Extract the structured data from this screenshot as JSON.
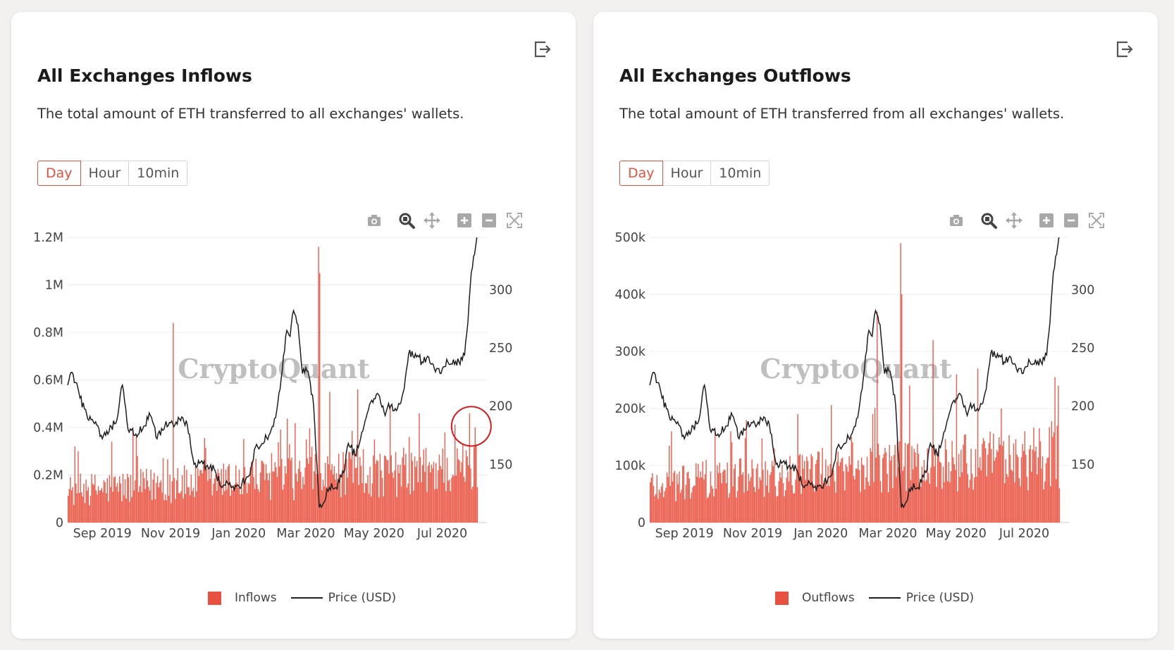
{
  "colors": {
    "bar": "#e8513f",
    "price_line": "#1e1e1e",
    "tab_active": "#e0533f",
    "annotation": "#d81b1b"
  },
  "modebar_icons": [
    "camera-icon",
    "zoom-icon",
    "pan-icon",
    "zoom-in-icon",
    "zoom-out-icon",
    "autoscale-icon"
  ],
  "tabs": [
    "Day",
    "Hour",
    "10min"
  ],
  "cards": [
    {
      "title": "All Exchanges Inflows",
      "description": "The total amount of ETH transferred to all exchanges' wallets.",
      "active_tab": "Day",
      "watermark": "CryptoQuant",
      "legend": {
        "bars": "Inflows",
        "line": "Price (USD)"
      }
    },
    {
      "title": "All Exchanges Outflows",
      "description": "The total amount of ETH transferred from all exchanges' wallets.",
      "active_tab": "Day",
      "watermark": "CryptoQuant",
      "legend": {
        "bars": "Outflows",
        "line": "Price (USD)"
      }
    }
  ],
  "chart_data": [
    {
      "type": "bar",
      "x_range": [
        "2019-08-01",
        "2020-08-10"
      ],
      "x_ticks": [
        "Sep 2019",
        "Nov 2019",
        "Jan 2020",
        "Mar 2020",
        "May 2020",
        "Jul 2020"
      ],
      "y_left": {
        "ticks": [
          "0",
          "0.2M",
          "0.4M",
          "0.6M",
          "0.8M",
          "1M",
          "1.2M"
        ],
        "ylim": [
          0,
          1200000
        ]
      },
      "y_right": {
        "ticks": [
          "150",
          "200",
          "250",
          "300"
        ],
        "ylim": [
          100,
          345
        ]
      },
      "grid": true,
      "legend_position": "bottom",
      "series": [
        {
          "name": "Inflows",
          "type": "bar",
          "baseline": 150000,
          "spikes": [
            [
              "2019-08-10",
              300000
            ],
            [
              "2019-09-09",
              340000
            ],
            [
              "2019-09-28",
              400000
            ],
            [
              "2019-10-20",
              195000
            ],
            [
              "2019-11-03",
              840000
            ],
            [
              "2019-11-25",
              230000
            ],
            [
              "2020-01-20",
              210000
            ],
            [
              "2020-02-15",
              330000
            ],
            [
              "2020-03-12",
              1160000
            ],
            [
              "2020-03-13",
              1050000
            ],
            [
              "2020-03-22",
              550000
            ],
            [
              "2020-04-16",
              560000
            ],
            [
              "2020-05-01",
              350000
            ],
            [
              "2020-06-01",
              360000
            ],
            [
              "2020-07-03",
              380000
            ],
            [
              "2020-07-25",
              460000
            ],
            [
              "2020-07-30",
              400000
            ]
          ]
        },
        {
          "name": "Price (USD)",
          "type": "line",
          "axis": "right",
          "points": [
            [
              "2019-08-01",
              218
            ],
            [
              "2019-08-05",
              229
            ],
            [
              "2019-08-12",
              207
            ],
            [
              "2019-08-18",
              193
            ],
            [
              "2019-08-25",
              185
            ],
            [
              "2019-09-01",
              172
            ],
            [
              "2019-09-07",
              178
            ],
            [
              "2019-09-14",
              188
            ],
            [
              "2019-09-19",
              218
            ],
            [
              "2019-09-24",
              180
            ],
            [
              "2019-10-01",
              176
            ],
            [
              "2019-10-07",
              180
            ],
            [
              "2019-10-14",
              192
            ],
            [
              "2019-10-20",
              172
            ],
            [
              "2019-10-27",
              183
            ],
            [
              "2019-11-03",
              185
            ],
            [
              "2019-11-09",
              189
            ],
            [
              "2019-11-16",
              184
            ],
            [
              "2019-11-22",
              150
            ],
            [
              "2019-11-28",
              152
            ],
            [
              "2019-12-03",
              148
            ],
            [
              "2019-12-10",
              146
            ],
            [
              "2019-12-17",
              130
            ],
            [
              "2019-12-22",
              134
            ],
            [
              "2019-12-28",
              128
            ],
            [
              "2020-01-04",
              134
            ],
            [
              "2020-01-10",
              140
            ],
            [
              "2020-01-16",
              165
            ],
            [
              "2020-01-22",
              168
            ],
            [
              "2020-01-28",
              175
            ],
            [
              "2020-02-03",
              190
            ],
            [
              "2020-02-08",
              224
            ],
            [
              "2020-02-13",
              265
            ],
            [
              "2020-02-16",
              260
            ],
            [
              "2020-02-19",
              282
            ],
            [
              "2020-02-23",
              270
            ],
            [
              "2020-02-27",
              228
            ],
            [
              "2020-03-03",
              230
            ],
            [
              "2020-03-08",
              200
            ],
            [
              "2020-03-12",
              133
            ],
            [
              "2020-03-13",
              113
            ],
            [
              "2020-03-16",
              115
            ],
            [
              "2020-03-22",
              130
            ],
            [
              "2020-03-28",
              130
            ],
            [
              "2020-04-04",
              143
            ],
            [
              "2020-04-08",
              168
            ],
            [
              "2020-04-14",
              158
            ],
            [
              "2020-04-18",
              168
            ],
            [
              "2020-04-24",
              190
            ],
            [
              "2020-04-29",
              205
            ],
            [
              "2020-05-05",
              210
            ],
            [
              "2020-05-10",
              195
            ],
            [
              "2020-05-16",
              200
            ],
            [
              "2020-05-22",
              198
            ],
            [
              "2020-05-28",
              215
            ],
            [
              "2020-06-01",
              245
            ],
            [
              "2020-06-07",
              245
            ],
            [
              "2020-06-13",
              238
            ],
            [
              "2020-06-19",
              242
            ],
            [
              "2020-06-24",
              232
            ],
            [
              "2020-06-30",
              228
            ],
            [
              "2020-07-06",
              238
            ],
            [
              "2020-07-11",
              240
            ],
            [
              "2020-07-16",
              238
            ],
            [
              "2020-07-21",
              244
            ],
            [
              "2020-07-24",
              272
            ],
            [
              "2020-07-27",
              315
            ],
            [
              "2020-08-01",
              345
            ]
          ]
        }
      ],
      "annotation": {
        "type": "circle",
        "date": "2020-07-27",
        "value": 405000,
        "note": "highlights the late-July inflow spike"
      }
    },
    {
      "type": "bar",
      "x_range": [
        "2019-08-01",
        "2020-08-10"
      ],
      "x_ticks": [
        "Sep 2019",
        "Nov 2019",
        "Jan 2020",
        "Mar 2020",
        "May 2020",
        "Jul 2020"
      ],
      "y_left": {
        "ticks": [
          "0",
          "100k",
          "200k",
          "300k",
          "400k",
          "500k"
        ],
        "ylim": [
          0,
          500000
        ]
      },
      "y_right": {
        "ticks": [
          "150",
          "200",
          "250",
          "300"
        ],
        "ylim": [
          100,
          345
        ]
      },
      "grid": true,
      "legend_position": "bottom",
      "series": [
        {
          "name": "Outflows",
          "type": "bar",
          "baseline": 75000,
          "spikes": [
            [
              "2019-08-20",
              160000
            ],
            [
              "2019-09-28",
              165000
            ],
            [
              "2019-10-12",
              160000
            ],
            [
              "2019-11-20",
              130000
            ],
            [
              "2020-01-28",
              150000
            ],
            [
              "2020-02-16",
              190000
            ],
            [
              "2020-02-20",
              370000
            ],
            [
              "2020-03-12",
              490000
            ],
            [
              "2020-03-13",
              400000
            ],
            [
              "2020-03-20",
              240000
            ],
            [
              "2020-04-10",
              320000
            ],
            [
              "2020-05-01",
              260000
            ],
            [
              "2020-05-20",
              270000
            ],
            [
              "2020-06-10",
              200000
            ],
            [
              "2020-07-01",
              160000
            ],
            [
              "2020-07-28",
              255000
            ],
            [
              "2020-07-31",
              240000
            ]
          ]
        },
        {
          "name": "Price (USD)",
          "type": "line",
          "axis": "right",
          "points": [
            [
              "2019-08-01",
              218
            ],
            [
              "2019-08-05",
              229
            ],
            [
              "2019-08-12",
              207
            ],
            [
              "2019-08-18",
              193
            ],
            [
              "2019-08-25",
              185
            ],
            [
              "2019-09-01",
              172
            ],
            [
              "2019-09-07",
              178
            ],
            [
              "2019-09-14",
              188
            ],
            [
              "2019-09-19",
              218
            ],
            [
              "2019-09-24",
              180
            ],
            [
              "2019-10-01",
              176
            ],
            [
              "2019-10-07",
              180
            ],
            [
              "2019-10-14",
              192
            ],
            [
              "2019-10-20",
              172
            ],
            [
              "2019-10-27",
              183
            ],
            [
              "2019-11-03",
              185
            ],
            [
              "2019-11-09",
              189
            ],
            [
              "2019-11-16",
              184
            ],
            [
              "2019-11-22",
              150
            ],
            [
              "2019-11-28",
              152
            ],
            [
              "2019-12-03",
              148
            ],
            [
              "2019-12-10",
              146
            ],
            [
              "2019-12-17",
              130
            ],
            [
              "2019-12-22",
              134
            ],
            [
              "2019-12-28",
              128
            ],
            [
              "2020-01-04",
              134
            ],
            [
              "2020-01-10",
              140
            ],
            [
              "2020-01-16",
              165
            ],
            [
              "2020-01-22",
              168
            ],
            [
              "2020-01-28",
              175
            ],
            [
              "2020-02-03",
              190
            ],
            [
              "2020-02-08",
              224
            ],
            [
              "2020-02-13",
              265
            ],
            [
              "2020-02-16",
              260
            ],
            [
              "2020-02-19",
              282
            ],
            [
              "2020-02-23",
              270
            ],
            [
              "2020-02-27",
              228
            ],
            [
              "2020-03-03",
              230
            ],
            [
              "2020-03-08",
              200
            ],
            [
              "2020-03-12",
              133
            ],
            [
              "2020-03-13",
              113
            ],
            [
              "2020-03-16",
              115
            ],
            [
              "2020-03-22",
              130
            ],
            [
              "2020-03-28",
              130
            ],
            [
              "2020-04-04",
              143
            ],
            [
              "2020-04-08",
              168
            ],
            [
              "2020-04-14",
              158
            ],
            [
              "2020-04-18",
              168
            ],
            [
              "2020-04-24",
              190
            ],
            [
              "2020-04-29",
              205
            ],
            [
              "2020-05-05",
              210
            ],
            [
              "2020-05-10",
              195
            ],
            [
              "2020-05-16",
              200
            ],
            [
              "2020-05-22",
              198
            ],
            [
              "2020-05-28",
              215
            ],
            [
              "2020-06-01",
              245
            ],
            [
              "2020-06-07",
              245
            ],
            [
              "2020-06-13",
              238
            ],
            [
              "2020-06-19",
              242
            ],
            [
              "2020-06-24",
              232
            ],
            [
              "2020-06-30",
              228
            ],
            [
              "2020-07-06",
              238
            ],
            [
              "2020-07-11",
              240
            ],
            [
              "2020-07-16",
              238
            ],
            [
              "2020-07-21",
              244
            ],
            [
              "2020-07-24",
              272
            ],
            [
              "2020-07-27",
              315
            ],
            [
              "2020-08-01",
              345
            ]
          ]
        }
      ]
    }
  ]
}
